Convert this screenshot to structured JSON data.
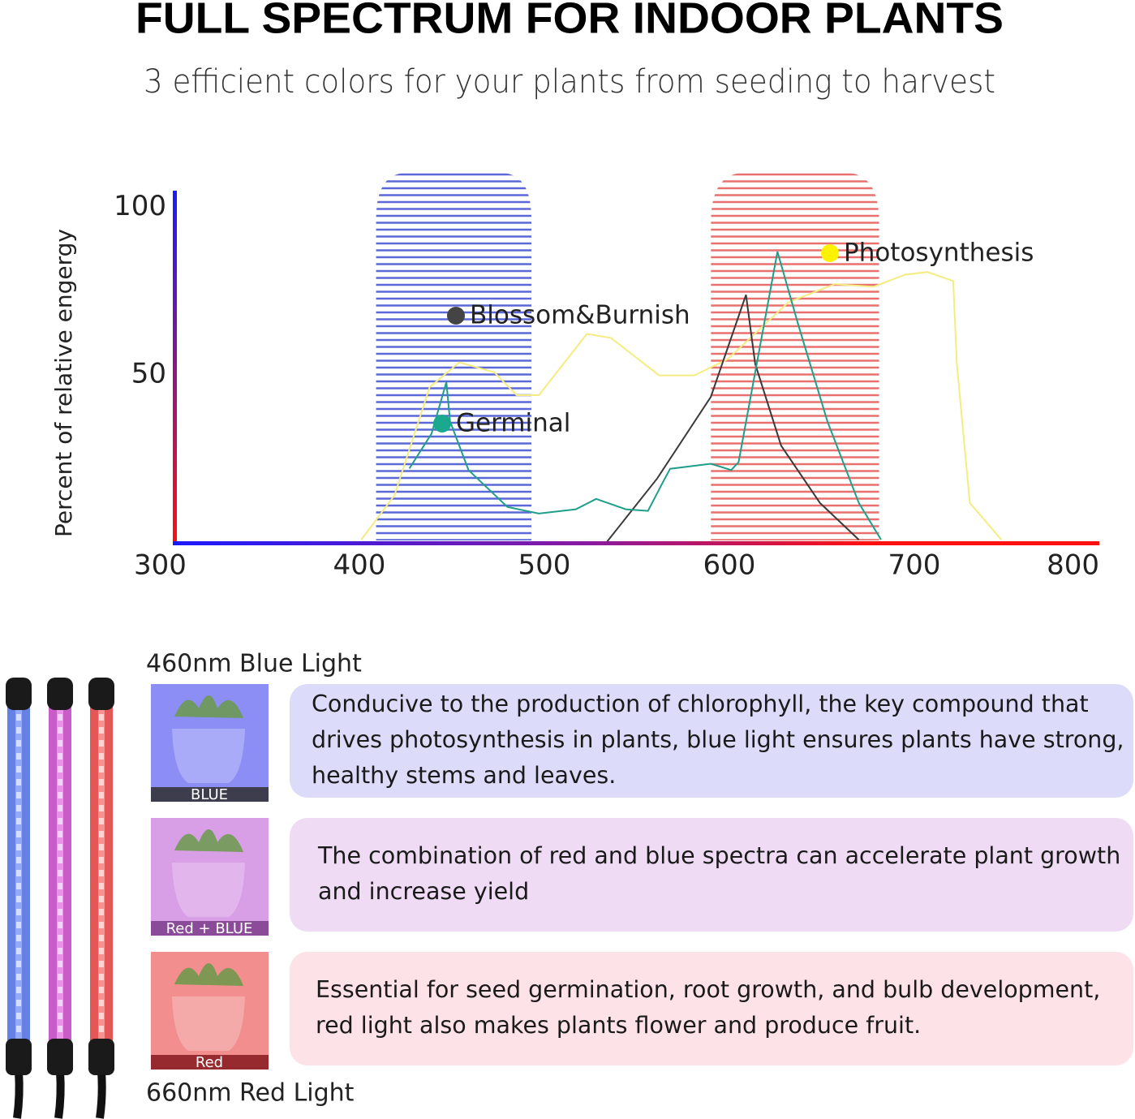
{
  "header": {
    "title": "FULL SPECTRUM FOR INDOOR PLANTS",
    "subtitle": "3 efficient colors for your plants from seeding to harvest"
  },
  "chart_data": {
    "type": "line",
    "y_label": "Percent of relative engergy",
    "xlim": [
      300,
      800
    ],
    "xticks": [
      300,
      400,
      500,
      600,
      700,
      800
    ],
    "ylim": [
      0,
      105
    ],
    "yticks": [
      50,
      100
    ],
    "grid": false,
    "bands": [
      {
        "color": "#5a68d8",
        "x": [
          409,
          493
        ]
      },
      {
        "color": "#e8706e",
        "x": [
          590,
          681
        ]
      }
    ],
    "series": [
      {
        "name": "Photosynthesis",
        "color": "#f4ec80",
        "marker_color": "#fff200",
        "x": [
          401,
          419,
          438,
          454,
          473,
          485,
          497,
          523,
          536,
          562,
          581,
          599,
          632,
          657,
          678,
          695,
          707,
          721,
          723,
          730,
          747
        ],
        "values": [
          0.7,
          14,
          46.3,
          53.7,
          50.7,
          43.9,
          43.9,
          62.2,
          61,
          49.8,
          49.8,
          54.6,
          71.7,
          77.1,
          76.3,
          79.9,
          80.7,
          78,
          53.2,
          11.7,
          0.7
        ]
      },
      {
        "name": "Blossom&Burnish",
        "color": "#3a3a3a",
        "marker_color": "#444444",
        "x": [
          534,
          561,
          590,
          609,
          614,
          628,
          649,
          670
        ],
        "values": [
          0.2,
          19,
          43.4,
          73.9,
          53.2,
          28.8,
          11.7,
          0.7
        ]
      },
      {
        "name": "Germinal",
        "color": "#1f9e8a",
        "marker_color": "#1aa88e",
        "x": [
          427,
          439,
          447,
          449,
          459,
          480,
          497,
          517,
          528,
          544,
          556,
          564,
          568,
          590,
          601,
          605,
          626,
          637,
          653,
          670,
          682
        ],
        "values": [
          22,
          32.4,
          47.8,
          36.1,
          21.5,
          10.5,
          8.5,
          9.8,
          12.9,
          9.8,
          9.3,
          17.8,
          21.9,
          23.4,
          21.5,
          23.9,
          86.8,
          65.4,
          36.1,
          11.7,
          0.7
        ]
      }
    ]
  },
  "section": {
    "top_label": "460nm Blue Light",
    "bottom_label": "660nm Red Light"
  },
  "panels": [
    {
      "tag": "BLUE",
      "text": [
        "Conducive to the production of chlorophyll, the key compound that",
        "drives photosynthesis in plants, blue light ensures plants have strong,",
        "healthy stems and leaves."
      ]
    },
    {
      "tag": "Red + BLUE",
      "text": [
        "The combination of red and blue spectra can accelerate plant growth",
        "and increase yield"
      ]
    },
    {
      "tag": "Red",
      "text": [
        "Essential for seed germination, root growth, and bulb development,",
        "red light also makes plants flower and produce fruit."
      ]
    }
  ]
}
